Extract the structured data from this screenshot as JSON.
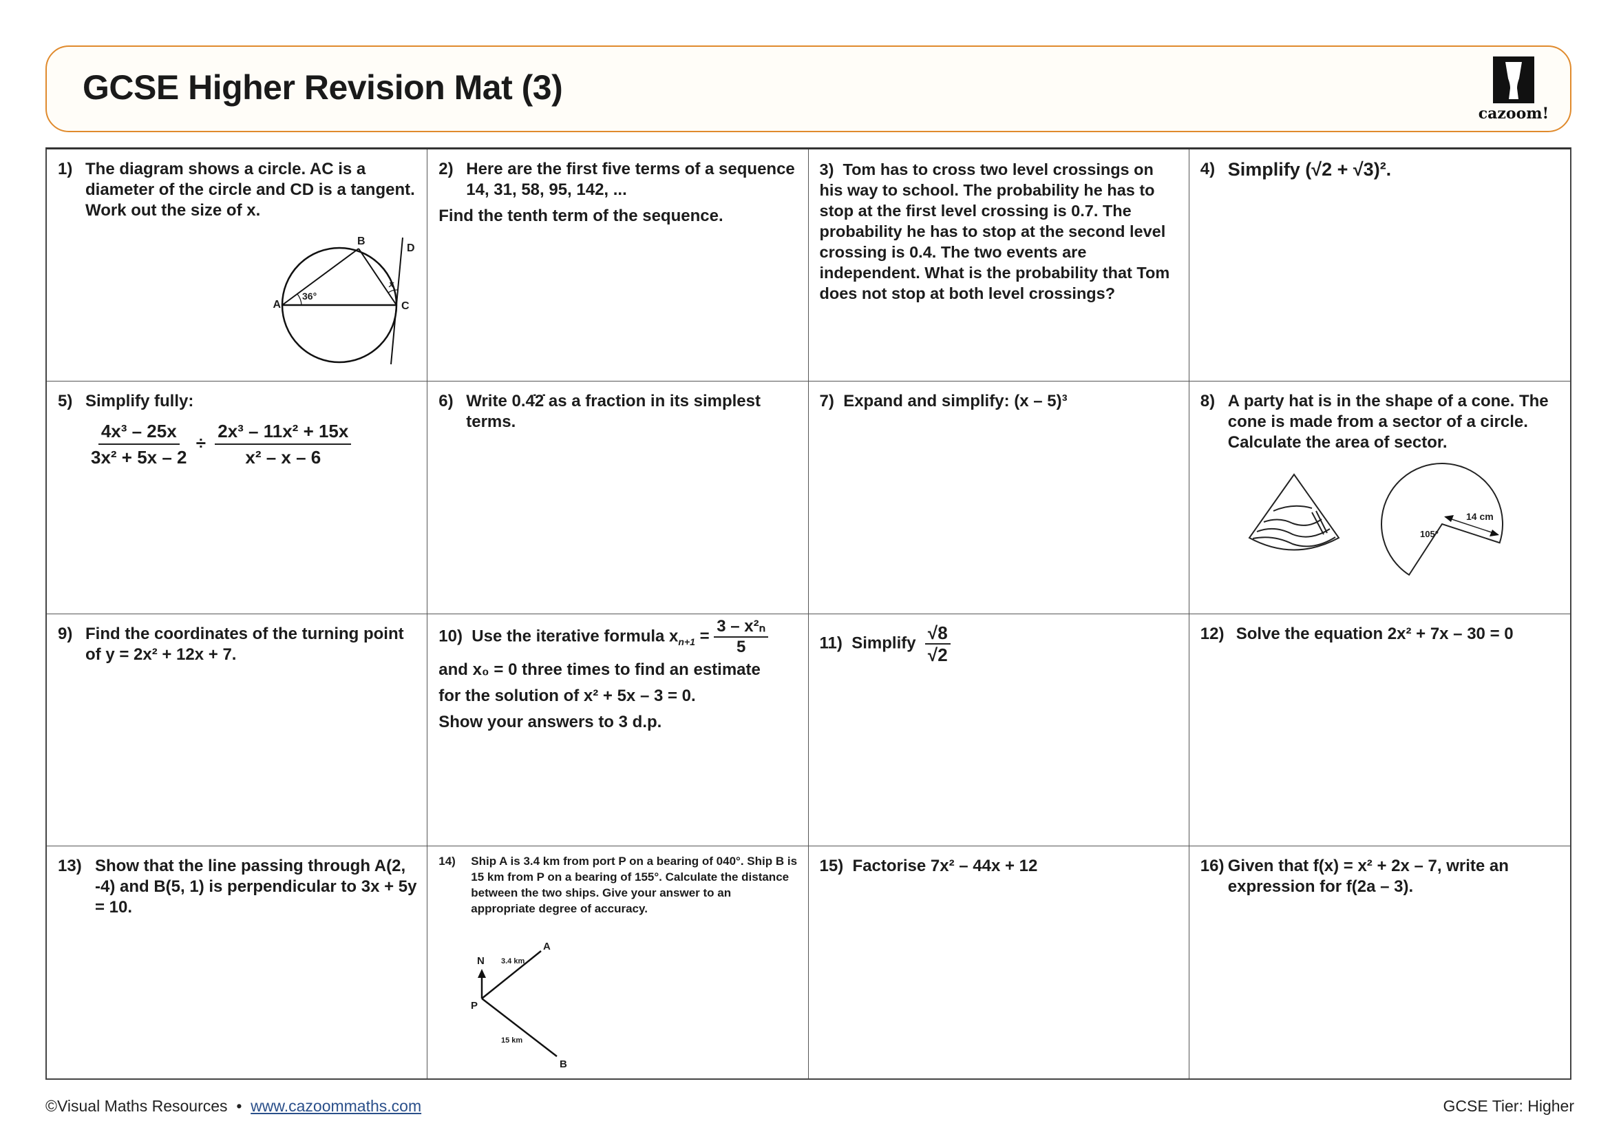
{
  "header": {
    "title": "GCSE Higher Revision Mat (3)",
    "logo_text": "cazoom!"
  },
  "questions": [
    {
      "num": "1)",
      "text": "The diagram shows a circle. AC is a diameter of the circle and CD is a tangent. Work out the size of x.",
      "labels": {
        "a": "A",
        "b": "B",
        "c": "C",
        "d": "D",
        "angle": "36°",
        "x": "x"
      }
    },
    {
      "num": "2)",
      "text": "Here are the first five terms of a sequence 14, 31, 58, 95, 142, ...",
      "extra": "Find the tenth term of the sequence."
    },
    {
      "num": "3)",
      "text": "Tom has to cross two level crossings on his way to school. The probability he has to stop at the first level crossing is 0.7. The probability he has to stop at the second level crossing is 0.4. The two events are independent. What is the probability that Tom does not stop at both level crossings?"
    },
    {
      "num": "4)",
      "text": "Simplify (√2 + √3)²."
    },
    {
      "num": "5)",
      "text": "Simplify fully:",
      "frac1_num": "4x³ – 25x",
      "frac1_den": "3x² + 5x – 2",
      "op": "÷",
      "frac2_num": "2x³ – 11x² + 15x",
      "frac2_den": "x² – x – 6"
    },
    {
      "num": "6)",
      "text": "Write 0.4̇2̇ as a fraction in its simplest terms."
    },
    {
      "num": "7)",
      "text": "Expand and simplify: (x – 5)³"
    },
    {
      "num": "8)",
      "text": "A party hat is in the shape of a cone. The cone is made from a sector of a circle. Calculate the area of sector.",
      "labels": {
        "radius": "14 cm",
        "angle": "105°"
      }
    },
    {
      "num": "9)",
      "text": "Find the coordinates of the turning point of y = 2x² + 12x + 7."
    },
    {
      "num": "10)",
      "text_pre": "Use the iterative formula x",
      "sub": "n+1",
      "eq": "=",
      "frac_num": "3 – x²ₙ",
      "frac_den": "5",
      "line2": "and x₀ = 0  three times to find an estimate",
      "line3": "for the solution of x² + 5x – 3 = 0.",
      "line4": "Show your answers to 3 d.p."
    },
    {
      "num": "11)",
      "text": "Simplify",
      "frac_num": "√8",
      "frac_den": "√2"
    },
    {
      "num": "12)",
      "text": "Solve the equation 2x² + 7x – 30 = 0"
    },
    {
      "num": "13)",
      "text": "Show that the line passing through A(2, -4) and B(5, 1) is perpendicular to 3x + 5y = 10."
    },
    {
      "num": "14)",
      "text": "Ship A is 3.4 km from port P on a bearing of 040°. Ship B is 15 km from P on a bearing of 155°. Calculate the distance between the two ships. Give your answer to an appropriate degree of accuracy.",
      "labels": {
        "n": "N",
        "p": "P",
        "a": "A",
        "b": "B",
        "pa": "3.4 km",
        "pb": "15 km"
      }
    },
    {
      "num": "15)",
      "text": "Factorise 7x² – 44x + 12"
    },
    {
      "num": "16)",
      "text": "Given that f(x) = x² + 2x – 7, write an expression for f(2a – 3)."
    }
  ],
  "footer": {
    "copyright": "©Visual Maths Resources",
    "separator": "•",
    "link": "www.cazoommaths.com",
    "tier": "GCSE Tier: Higher"
  },
  "colors": {
    "header_border": "#e08a2c",
    "header_bg": "#fffdf8",
    "link": "#2a4f8a"
  }
}
